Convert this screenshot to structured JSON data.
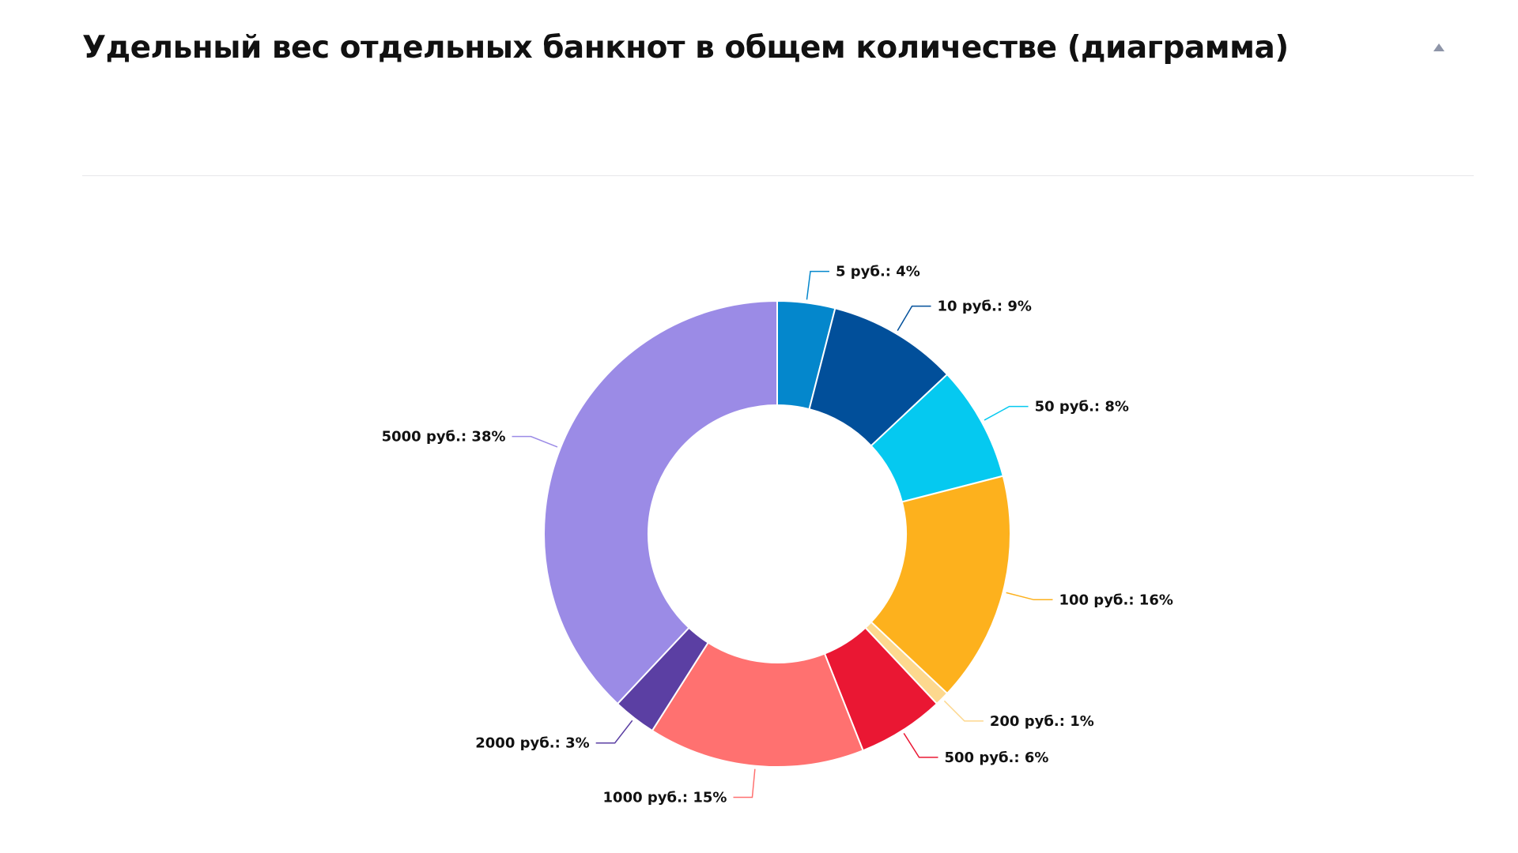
{
  "header": {
    "title": "Удельный вес отдельных банкнот в общем количестве (диаграмма)",
    "toggle_icon": "triangle-up-icon"
  },
  "chart_data": {
    "type": "pie",
    "variant": "donut",
    "title": "Удельный вес отдельных банкнот в общем количестве (диаграмма)",
    "unit": "%",
    "slices": [
      {
        "label": "5 руб.: 4%",
        "name": "5 руб.",
        "value": 4,
        "color": "#0487cc"
      },
      {
        "label": "10 руб.: 9%",
        "name": "10 руб.",
        "value": 9,
        "color": "#014f9a"
      },
      {
        "label": "50 руб.: 8%",
        "name": "50 руб.",
        "value": 8,
        "color": "#05c9f0"
      },
      {
        "label": "100 руб.: 16%",
        "name": "100 руб.",
        "value": 16,
        "color": "#fdb11d"
      },
      {
        "label": "200 руб.: 1%",
        "name": "200 руб.",
        "value": 1,
        "color": "#fdd88e"
      },
      {
        "label": "500 руб.: 6%",
        "name": "500 руб.",
        "value": 6,
        "color": "#ea1733"
      },
      {
        "label": "1000 руб.: 15%",
        "name": "1000 руб.",
        "value": 15,
        "color": "#ff7170"
      },
      {
        "label": "2000 руб.: 3%",
        "name": "2000 руб.",
        "value": 3,
        "color": "#5b3fa3"
      },
      {
        "label": "5000 руб.: 38%",
        "name": "5000 руб.",
        "value": 38,
        "color": "#9b8be6"
      }
    ]
  }
}
